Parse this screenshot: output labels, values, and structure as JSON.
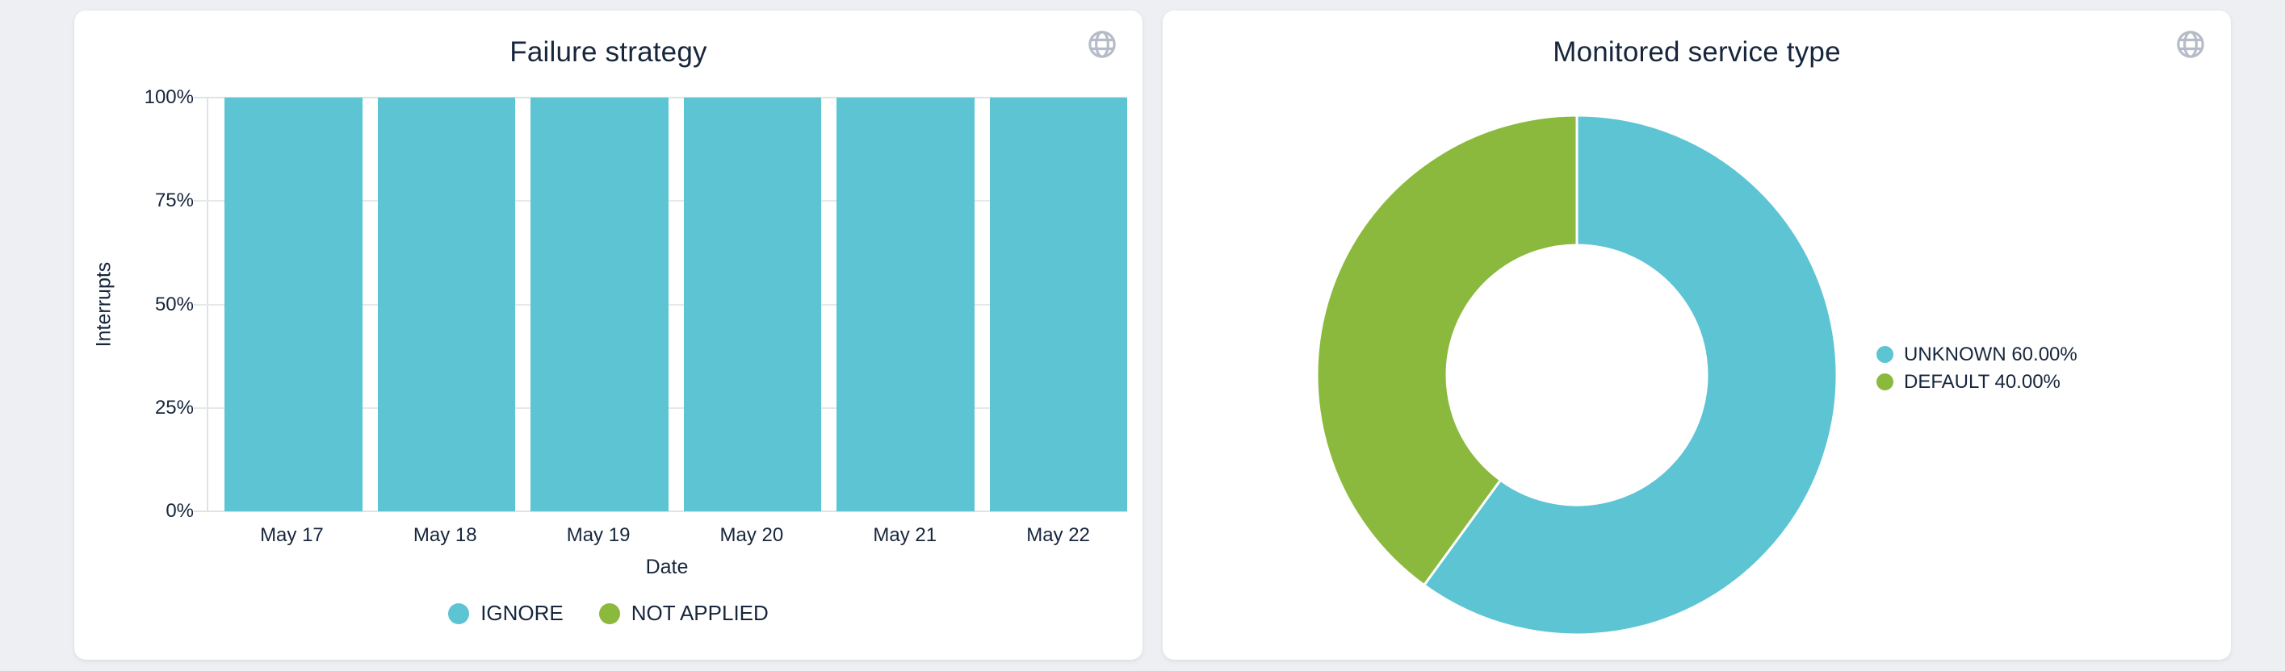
{
  "page": {
    "background_color": "#edeff2",
    "card_background_color": "#ffffff",
    "text_color": "#17263c",
    "gridline_color": "#e7e8ea",
    "axis_line_color": "#dfe2e6",
    "icon_color": "#b5bcc7"
  },
  "cards": [
    {
      "title": "Failure strategy",
      "action_icon": "globe-icon"
    },
    {
      "title": "Monitored service type",
      "action_icon": "globe-icon"
    }
  ],
  "chart_data": [
    {
      "type": "bar",
      "title": "Failure strategy",
      "categories": [
        "May 17",
        "May 18",
        "May 19",
        "May 20",
        "May 21",
        "May 22"
      ],
      "series": [
        {
          "name": "IGNORE",
          "color": "#5cc4d3",
          "values": [
            100,
            100,
            100,
            100,
            100,
            100
          ]
        },
        {
          "name": "NOT APPLIED",
          "color": "#8bb93d",
          "values": [
            0,
            0,
            0,
            0,
            0,
            0
          ]
        }
      ],
      "stacked_percent": true,
      "xlabel": "Date",
      "ylabel": "Interrupts",
      "y_ticks_top_down": [
        "100%",
        "75%",
        "50%",
        "25%",
        "0%"
      ],
      "ylim": [
        0,
        100
      ],
      "grid": true,
      "legend_position": "bottom"
    },
    {
      "type": "pie",
      "donut": true,
      "title": "Monitored service type",
      "slices": [
        {
          "label": "UNKNOWN",
          "value": 60.0,
          "color": "#5cc4d3",
          "legend_text": "UNKNOWN 60.00%"
        },
        {
          "label": "DEFAULT",
          "value": 40.0,
          "color": "#8bb93d",
          "legend_text": "DEFAULT 40.00%"
        }
      ],
      "start_angle_deg": 0,
      "inner_radius_ratio": 0.5,
      "separator_color": "#ffffff",
      "legend_position": "right"
    }
  ]
}
